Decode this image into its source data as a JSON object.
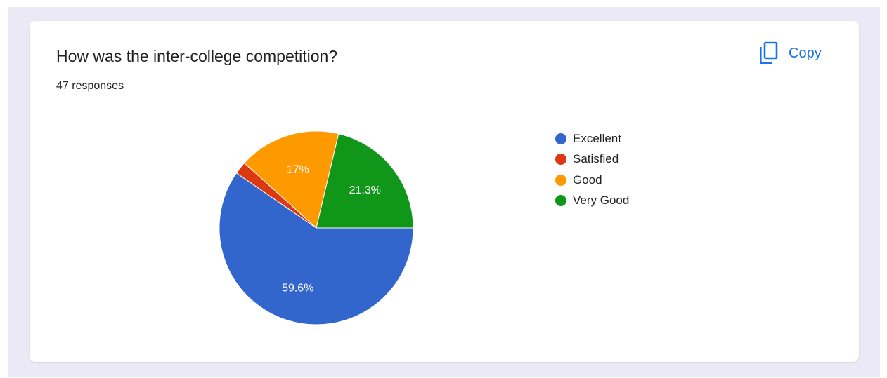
{
  "question": {
    "title": "How was the inter-college competition?",
    "responses": "47 responses"
  },
  "copy": {
    "label": "Copy",
    "icon": "copy-icon",
    "color": "#1a73e8"
  },
  "chart_data": {
    "type": "pie",
    "title": "How was the inter-college competition?",
    "categories": [
      "Excellent",
      "Satisfied",
      "Good",
      "Very Good"
    ],
    "values": [
      59.6,
      2.1,
      17.0,
      21.3
    ],
    "labels": [
      "59.6%",
      "",
      "17%",
      "21.3%"
    ],
    "colors": [
      "#3366cc",
      "#dc3912",
      "#ff9900",
      "#109618"
    ],
    "legend": "right"
  }
}
